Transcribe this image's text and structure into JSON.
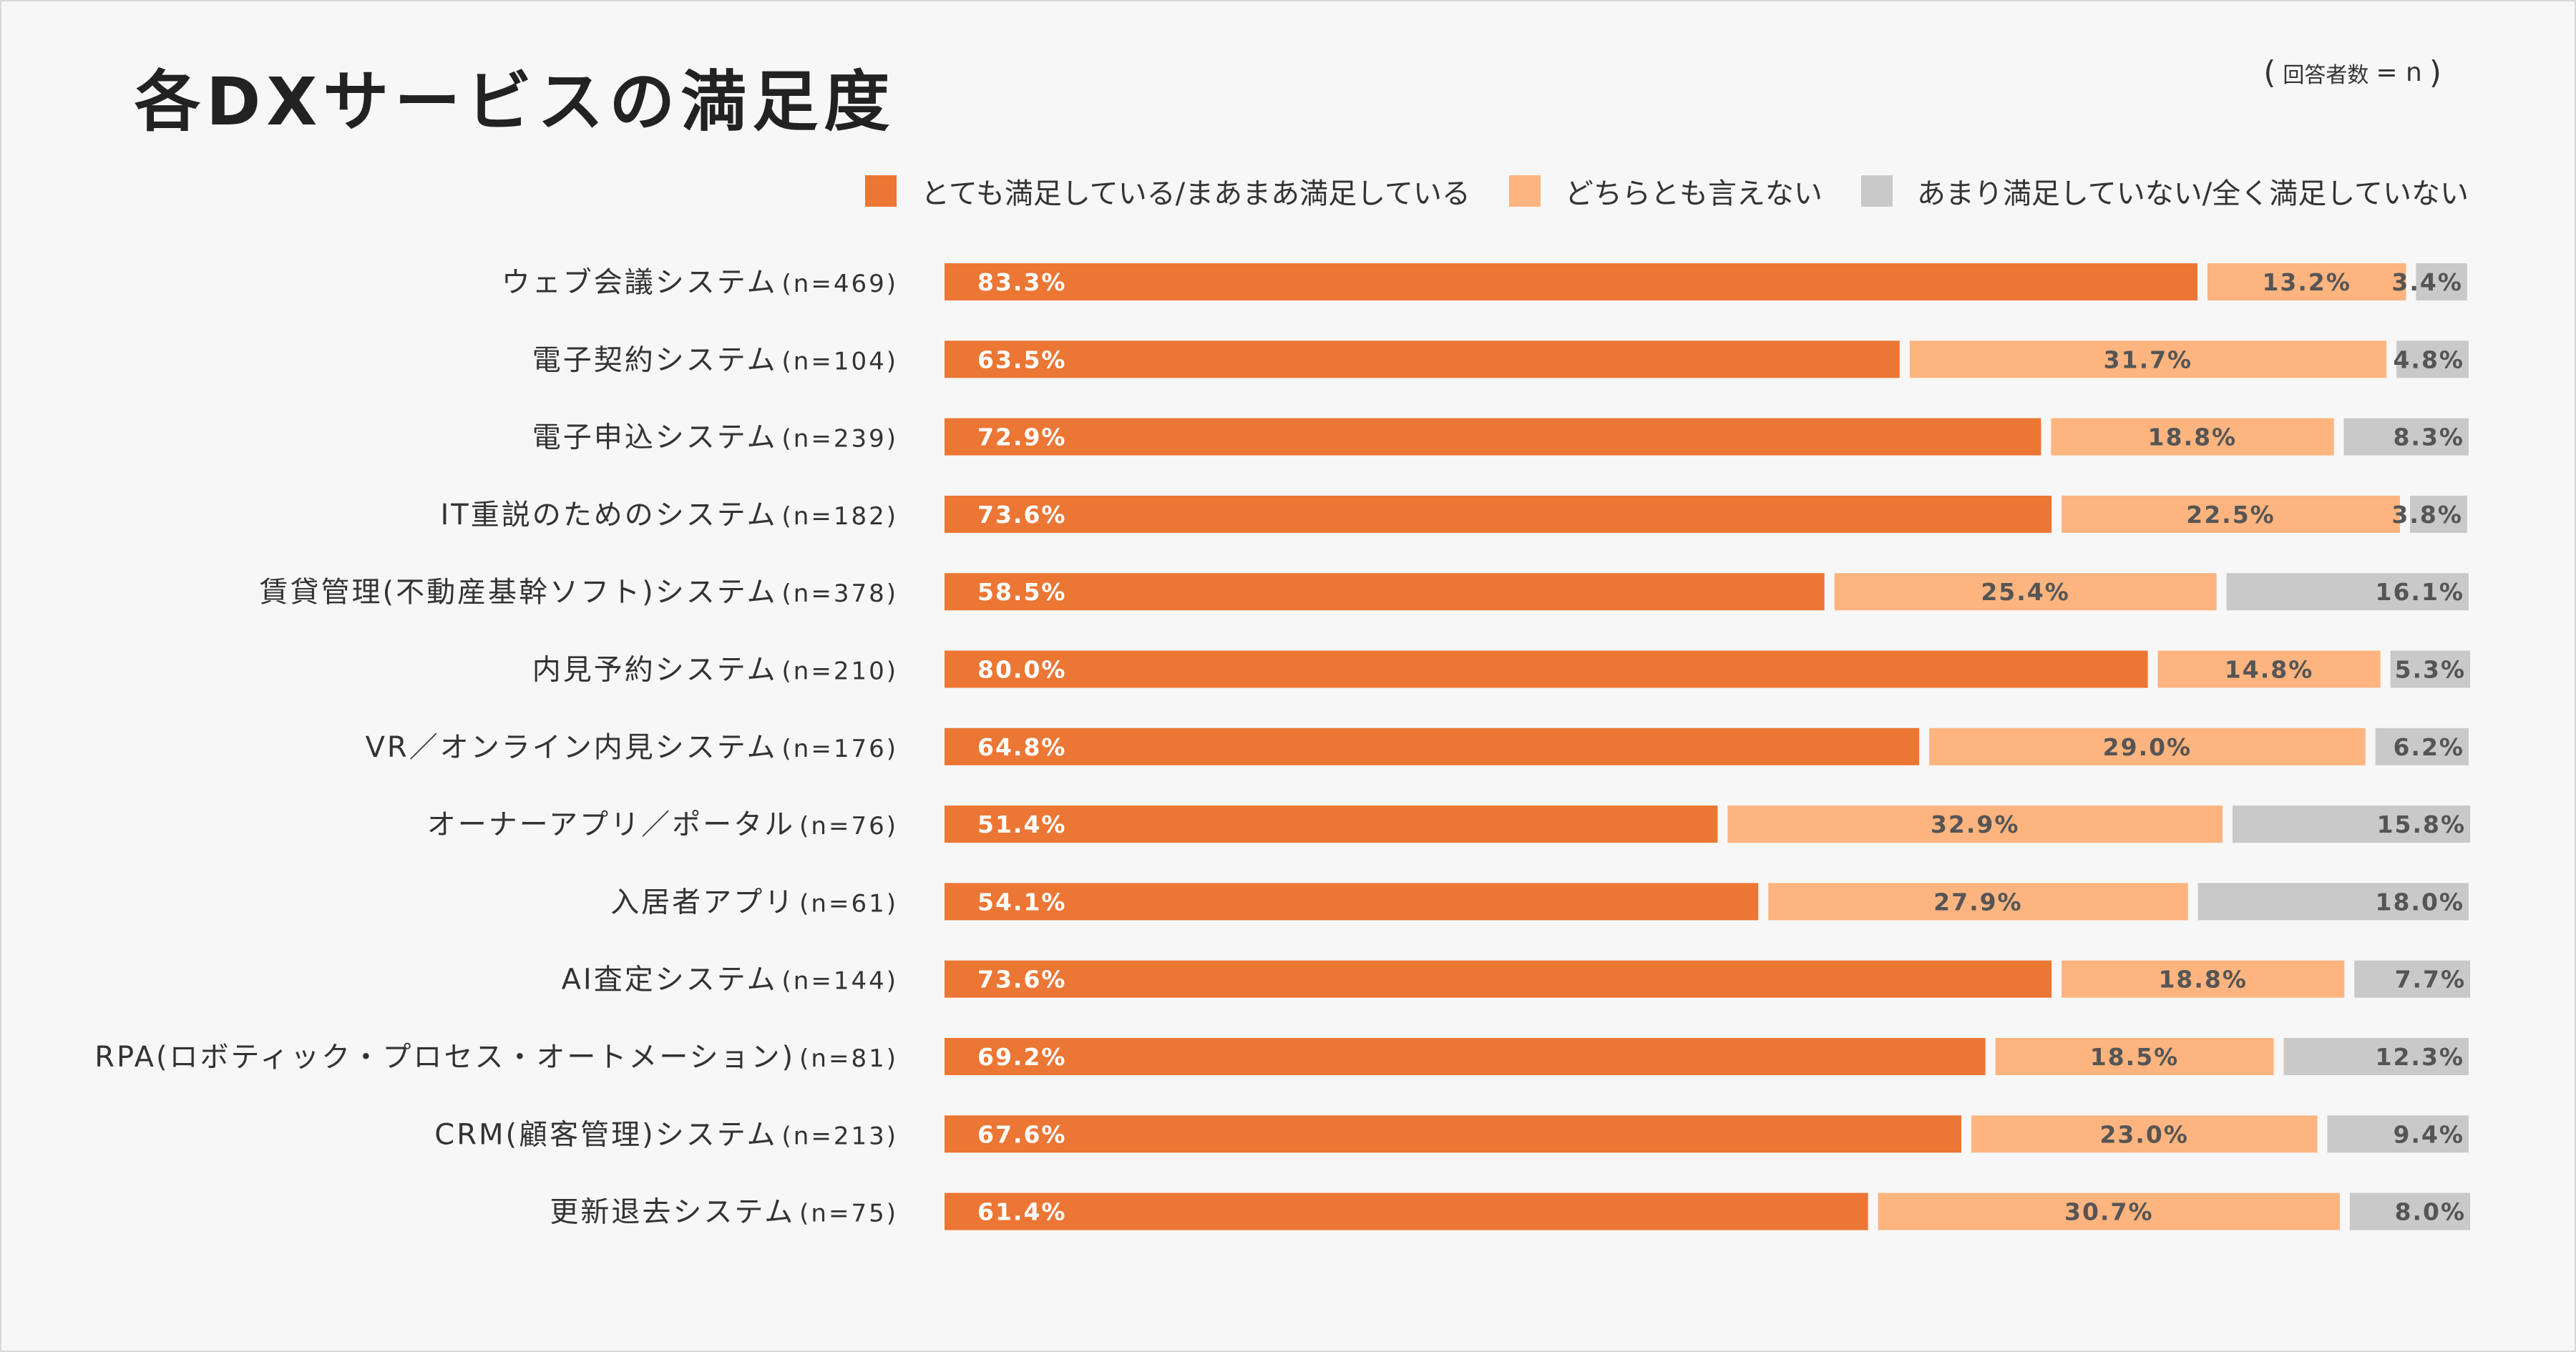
{
  "chart_data": {
    "type": "bar",
    "orientation": "horizontal-stacked-100",
    "title": "各DXサービスの満足度",
    "sample_note": {
      "open": "(",
      "label": "回答者数",
      "eq": "= n",
      "close": ")"
    },
    "series": [
      {
        "name": "とても満足している/まあまあ満足している",
        "color": "#ec7634",
        "label_color": "#ffffff",
        "values": [
          83.3,
          63.5,
          72.9,
          73.6,
          58.5,
          80.0,
          64.8,
          51.4,
          54.1,
          73.6,
          69.2,
          67.6,
          61.4
        ]
      },
      {
        "name": "どちらとも言えない",
        "color": "#fdb47f",
        "label_color": "#555555",
        "values": [
          13.2,
          31.7,
          18.8,
          22.5,
          25.4,
          14.8,
          29.0,
          32.9,
          27.9,
          18.8,
          18.5,
          23.0,
          30.7
        ]
      },
      {
        "name": "あまり満足していない/全く満足していない",
        "color": "#c9c9c9",
        "label_color": "#555555",
        "values": [
          3.4,
          4.8,
          8.3,
          3.8,
          16.1,
          5.3,
          6.2,
          15.8,
          18.0,
          7.7,
          12.3,
          9.4,
          8.0
        ]
      }
    ],
    "categories": [
      {
        "name": "ウェブ会議システム",
        "n": "(n=469)"
      },
      {
        "name": "電子契約システム",
        "n": "(n=104)"
      },
      {
        "name": "電子申込システム",
        "n": "(n=239)"
      },
      {
        "name": "IT重説のためのシステム",
        "n": "(n=182)"
      },
      {
        "name": "賃貸管理(不動産基幹ソフト)システム",
        "n": "(n=378)"
      },
      {
        "name": "内見予約システム",
        "n": "(n=210)"
      },
      {
        "name": "VR／オンライン内見システム",
        "n": "(n=176)"
      },
      {
        "name": "オーナーアプリ／ポータル",
        "n": "(n=76)"
      },
      {
        "name": "入居者アプリ",
        "n": "(n=61)"
      },
      {
        "name": "AI査定システム",
        "n": "(n=144)"
      },
      {
        "name": "RPA(ロボティック・プロセス・オートメーション)",
        "n": "(n=81)"
      },
      {
        "name": "CRM(顧客管理)システム",
        "n": "(n=213)"
      },
      {
        "name": "更新退去システム",
        "n": "(n=75)"
      }
    ],
    "value_suffix": "%",
    "xlim": [
      0,
      100
    ],
    "grid": false,
    "legend_position": "top-right"
  }
}
